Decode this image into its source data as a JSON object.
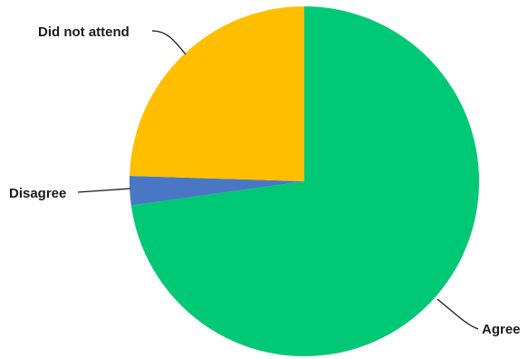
{
  "chart_data": {
    "type": "pie",
    "slices": [
      {
        "label": "Agree",
        "value": 72.8,
        "color": "#00c875"
      },
      {
        "label": "Disagree",
        "value": 2.7,
        "color": "#4a77c4"
      },
      {
        "label": "Did not attend",
        "value": 24.5,
        "color": "#ffbe00"
      }
    ],
    "title": "",
    "legend": "none",
    "start_angle": "12 o'clock",
    "direction": "clockwise"
  }
}
